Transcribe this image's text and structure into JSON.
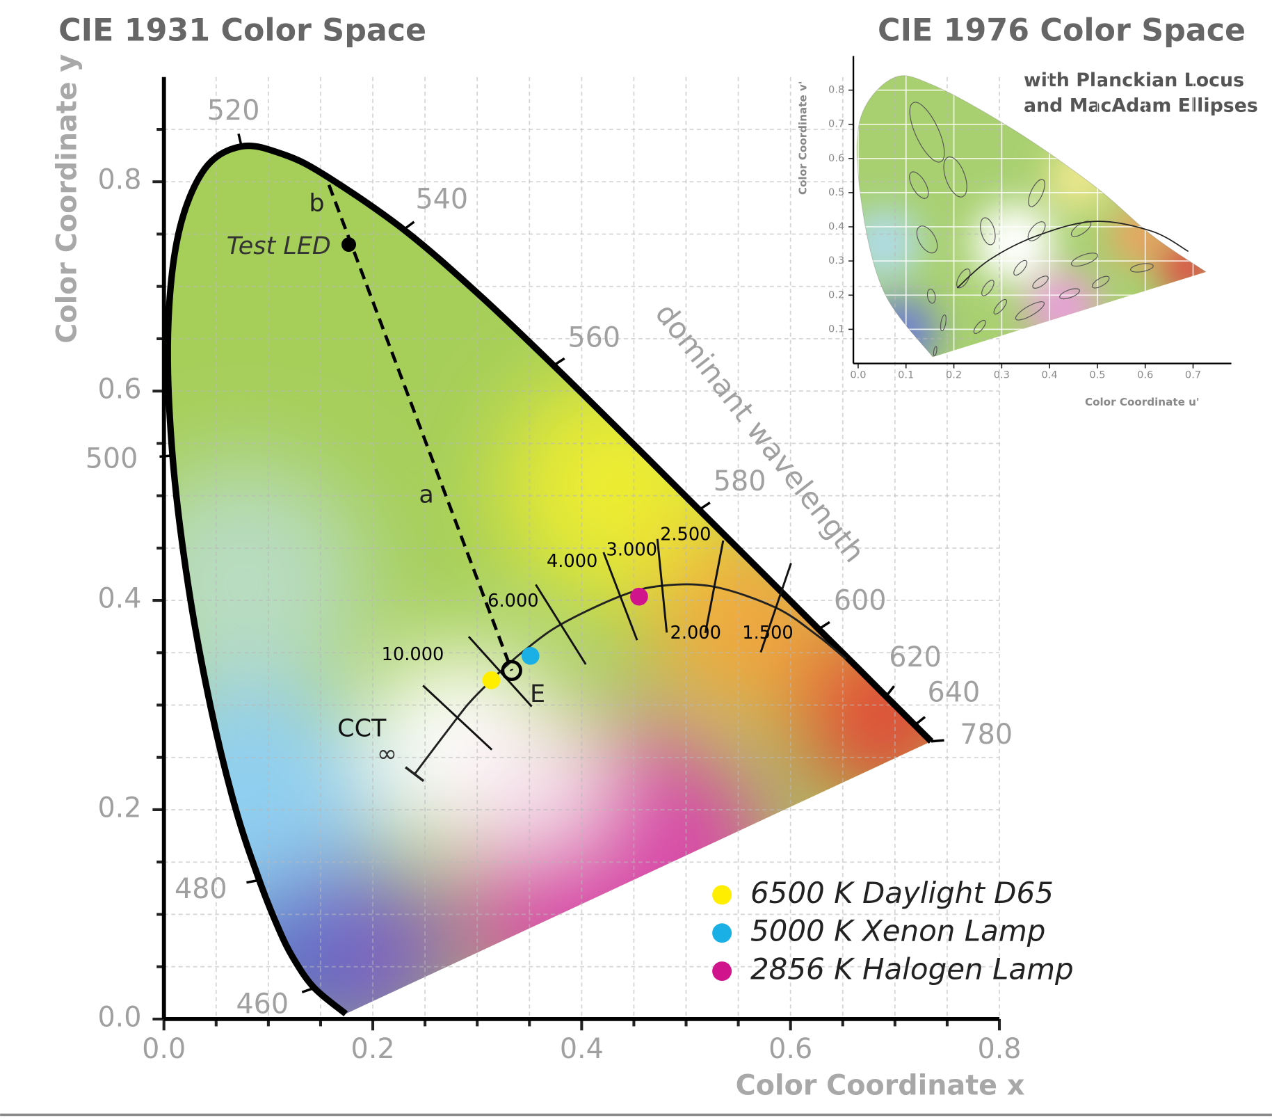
{
  "chart_data": [
    {
      "type": "chromaticity",
      "title": "CIE 1931 Color Space",
      "xlabel": "Color Coordinate x",
      "ylabel": "Color Coordinate y",
      "xlim": [
        0,
        0.8
      ],
      "ylim": [
        0,
        0.9
      ],
      "xticks": [
        {
          "value": 0,
          "label": "0.0"
        },
        0.2,
        0.4,
        0.6,
        0.8
      ],
      "yticks": [
        {
          "value": 0,
          "label": "0.0"
        },
        0.2,
        0.4,
        0.6,
        0.8
      ],
      "xminor": [
        0.05,
        0.1,
        0.15,
        0.25,
        0.3,
        0.35,
        0.45,
        0.5,
        0.55,
        0.65,
        0.7,
        0.75
      ],
      "yminor": [
        0.05,
        0.1,
        0.15,
        0.25,
        0.3,
        0.35,
        0.45,
        0.5,
        0.55,
        0.65,
        0.7,
        0.75,
        0.85
      ],
      "grid": true,
      "spectral_locus": {
        "x": [
          0.1741,
          0.144,
          0.1241,
          0.1096,
          0.0913,
          0.0687,
          0.0454,
          0.0235,
          0.0082,
          0.0039,
          0.0139,
          0.0389,
          0.0743,
          0.1142,
          0.1547,
          0.2296,
          0.3016,
          0.3731,
          0.4441,
          0.5125,
          0.5752,
          0.627,
          0.6658,
          0.6915,
          0.7079,
          0.719,
          0.7347
        ],
        "y": [
          0.005,
          0.0297,
          0.0578,
          0.0868,
          0.1327,
          0.2007,
          0.295,
          0.4127,
          0.5384,
          0.6548,
          0.7502,
          0.812,
          0.8338,
          0.8262,
          0.8059,
          0.7543,
          0.6923,
          0.6245,
          0.5547,
          0.4866,
          0.4242,
          0.3725,
          0.334,
          0.3083,
          0.292,
          0.2809,
          0.2653
        ]
      },
      "wavelength_labels": {
        "wavelengths": [
          460,
          480,
          500,
          520,
          540,
          560,
          580,
          600,
          620,
          640,
          780
        ],
        "x": [
          0.144,
          0.0913,
          0.0082,
          0.0743,
          0.2296,
          0.3731,
          0.5125,
          0.627,
          0.6915,
          0.719,
          0.7347
        ],
        "y": [
          0.0297,
          0.1327,
          0.5384,
          0.8338,
          0.7543,
          0.6245,
          0.4866,
          0.3725,
          0.3083,
          0.2809,
          0.2653
        ]
      },
      "axis_annotation": "dominant wavelength",
      "planckian_locus": {
        "x": [
          0.24,
          0.281,
          0.295,
          0.3135,
          0.322,
          0.345,
          0.38,
          0.437,
          0.477,
          0.527,
          0.586,
          0.625,
          0.653
        ],
        "y": [
          0.234,
          0.288,
          0.305,
          0.3237,
          0.332,
          0.352,
          0.377,
          0.404,
          0.414,
          0.413,
          0.393,
          0.367,
          0.344
        ]
      },
      "cct_label": "CCT",
      "cct_infinity": "∞",
      "isotherms": [
        {
          "value": 10000,
          "label": "10.000",
          "x": 0.281,
          "y": 0.288
        },
        {
          "value": 6000,
          "label": "6.000",
          "x": 0.322,
          "y": 0.332
        },
        {
          "value": 4000,
          "label": "4.000",
          "x": 0.38,
          "y": 0.377
        },
        {
          "value": 3000,
          "label": "3.000",
          "x": 0.437,
          "y": 0.404
        },
        {
          "value": 2500,
          "label": "2.500",
          "x": 0.477,
          "y": 0.414
        },
        {
          "value": 2000,
          "label": "2.000",
          "x": 0.527,
          "y": 0.413
        },
        {
          "value": 1500,
          "label": "1.500",
          "x": 0.586,
          "y": 0.393
        }
      ],
      "series": [
        {
          "name": "6500 K Daylight D65",
          "color": "#ffee00",
          "x": [
            0.3135
          ],
          "y": [
            0.3237
          ]
        },
        {
          "name": "5000 K Xenon Lamp",
          "color": "#1ab0e6",
          "x": [
            0.351
          ],
          "y": [
            0.347
          ]
        },
        {
          "name": "2856 K Halogen Lamp",
          "color": "#d0148c",
          "x": [
            0.455
          ],
          "y": [
            0.4036
          ]
        }
      ],
      "white_point": {
        "label": "E",
        "x": 0.333,
        "y": 0.333
      },
      "test_led": {
        "label": "Test LED",
        "x": 0.177,
        "y": 0.74
      },
      "dominant_line": {
        "x": [
          0.158,
          0.333
        ],
        "y": [
          0.797,
          0.333
        ],
        "labels": [
          "b",
          "a"
        ]
      }
    },
    {
      "type": "chromaticity",
      "title": "CIE 1976 Color Space",
      "subtitle": [
        "with Planckian Locus",
        "and MacAdam Ellipses"
      ],
      "xlabel": "Color Coordinate u'",
      "ylabel": "Color Coordinate v'",
      "xlim": [
        -0.01,
        0.78
      ],
      "ylim": [
        0,
        0.9
      ],
      "xticks": [
        {
          "value": 0,
          "label": "0.0"
        },
        0.1,
        0.2,
        0.3,
        0.4,
        0.5,
        0.6,
        0.7
      ],
      "yticks": [
        0.1,
        0.2,
        0.3,
        0.4,
        0.5,
        0.6,
        0.7,
        0.8
      ],
      "grid": true,
      "spectral_locus": {
        "x": [
          0.156,
          0.054,
          0.007,
          0.003,
          0.071,
          0.156,
          0.325,
          0.495,
          0.614,
          0.727
        ],
        "y": [
          0.019,
          0.209,
          0.47,
          0.708,
          0.834,
          0.815,
          0.684,
          0.518,
          0.375,
          0.268
        ]
      },
      "planckian_locus": {
        "x": [
          0.207,
          0.275,
          0.376,
          0.495,
          0.614,
          0.69
        ],
        "y": [
          0.221,
          0.304,
          0.375,
          0.416,
          0.387,
          0.328
        ]
      },
      "ellipses": {
        "u": [
          0.144,
          0.127,
          0.203,
          0.144,
          0.271,
          0.373,
          0.373,
          0.466,
          0.22,
          0.153,
          0.271,
          0.339,
          0.381,
          0.473,
          0.593,
          0.442,
          0.507,
          0.359,
          0.297,
          0.178,
          0.254,
          0.161
        ],
        "v": [
          0.677,
          0.522,
          0.546,
          0.363,
          0.387,
          0.499,
          0.387,
          0.394,
          0.249,
          0.197,
          0.221,
          0.28,
          0.238,
          0.304,
          0.28,
          0.204,
          0.238,
          0.154,
          0.166,
          0.119,
          0.107,
          0.036
        ],
        "a": [
          0.024,
          0.014,
          0.02,
          0.017,
          0.014,
          0.012,
          0.012,
          0.01,
          0.01,
          0.008,
          0.008,
          0.008,
          0.008,
          0.01,
          0.008,
          0.008,
          0.008,
          0.01,
          0.007,
          0.005,
          0.007,
          0.003
        ],
        "b": [
          0.068,
          0.031,
          0.044,
          0.031,
          0.029,
          0.031,
          0.024,
          0.024,
          0.022,
          0.015,
          0.019,
          0.019,
          0.019,
          0.029,
          0.024,
          0.022,
          0.02,
          0.034,
          0.019,
          0.017,
          0.017,
          0.01
        ],
        "angle": [
          -25,
          -30,
          -20,
          -30,
          -15,
          25,
          40,
          55,
          30,
          -10,
          35,
          40,
          55,
          70,
          80,
          70,
          60,
          60,
          40,
          10,
          40,
          10
        ]
      }
    }
  ]
}
